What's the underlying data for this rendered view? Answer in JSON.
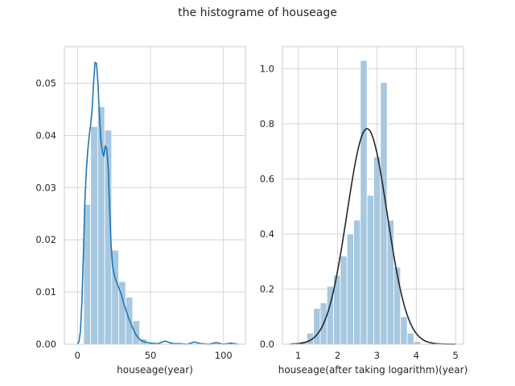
{
  "figure": {
    "suptitle": "the histograme of houseage",
    "colors": {
      "hist_fill": "#a6c8e0",
      "kde_line": "#1f77b4",
      "normal_line": "#262626",
      "grid": "#cccccc",
      "spine": "#cccccc"
    }
  },
  "chart_data": [
    {
      "type": "histogram",
      "title": "",
      "xlabel": "houseage(year)",
      "ylabel": "",
      "xlim": [
        -9,
        115
      ],
      "ylim": [
        0,
        0.057
      ],
      "xticks": [
        0,
        50,
        100
      ],
      "xtick_labels": [
        "0",
        "50",
        "100"
      ],
      "yticks": [
        0.0,
        0.01,
        0.02,
        0.03,
        0.04,
        0.05
      ],
      "ytick_labels": [
        "0.00",
        "0.01",
        "0.02",
        "0.03",
        "0.04",
        "0.05"
      ],
      "grid": true,
      "bins": [
        {
          "x0": 4.2,
          "x1": 9.0,
          "value": 0.0268
        },
        {
          "x0": 9.0,
          "x1": 13.8,
          "value": 0.0417
        },
        {
          "x0": 13.8,
          "x1": 18.6,
          "value": 0.0455
        },
        {
          "x0": 18.6,
          "x1": 23.4,
          "value": 0.041
        },
        {
          "x0": 23.4,
          "x1": 28.2,
          "value": 0.018
        },
        {
          "x0": 28.2,
          "x1": 33.0,
          "value": 0.012
        },
        {
          "x0": 33.0,
          "x1": 37.8,
          "value": 0.009
        },
        {
          "x0": 37.8,
          "x1": 42.6,
          "value": 0.0045
        },
        {
          "x0": 42.6,
          "x1": 47.4,
          "value": 0.001
        }
      ],
      "kde": {
        "x": [
          0,
          1,
          2,
          3,
          4,
          5,
          6,
          7,
          8,
          9,
          10,
          11,
          12,
          13,
          14,
          15,
          16,
          17,
          18,
          19,
          20,
          21,
          22,
          23,
          24,
          25,
          26,
          28,
          30,
          32,
          35,
          38,
          40,
          43,
          46,
          50,
          55,
          60,
          63,
          66,
          70,
          75,
          80,
          85,
          90,
          95,
          100,
          105,
          110
        ],
        "y": [
          0.0,
          0.0005,
          0.0025,
          0.008,
          0.017,
          0.027,
          0.033,
          0.037,
          0.04,
          0.042,
          0.045,
          0.05,
          0.054,
          0.0538,
          0.05,
          0.044,
          0.039,
          0.037,
          0.036,
          0.038,
          0.0375,
          0.034,
          0.026,
          0.019,
          0.015,
          0.0135,
          0.0125,
          0.011,
          0.0095,
          0.0075,
          0.005,
          0.003,
          0.0018,
          0.0008,
          0.0004,
          0.0002,
          0.0001,
          0.0006,
          0.0003,
          0.0001,
          0.0001,
          0.0,
          0.0004,
          0.0001,
          0.0,
          0.0003,
          0.0,
          0.0002,
          0.0
        ]
      }
    },
    {
      "type": "histogram",
      "title": "",
      "xlabel": "houseage(after taking logarithm)(year)",
      "ylabel": "",
      "xlim": [
        0.6,
        5.2
      ],
      "ylim": [
        0,
        1.08
      ],
      "xticks": [
        1,
        2,
        3,
        4,
        5
      ],
      "xtick_labels": [
        "1",
        "2",
        "3",
        "4",
        "5"
      ],
      "yticks": [
        0.0,
        0.2,
        0.4,
        0.6,
        0.8,
        1.0
      ],
      "ytick_labels": [
        "0.0",
        "0.2",
        "0.4",
        "0.6",
        "0.8",
        "1.0"
      ],
      "grid": true,
      "bins": [
        {
          "x0": 1.05,
          "x1": 1.22,
          "value": 0.01
        },
        {
          "x0": 1.22,
          "x1": 1.39,
          "value": 0.04
        },
        {
          "x0": 1.39,
          "x1": 1.56,
          "value": 0.13
        },
        {
          "x0": 1.56,
          "x1": 1.73,
          "value": 0.15
        },
        {
          "x0": 1.73,
          "x1": 1.9,
          "value": 0.21
        },
        {
          "x0": 1.9,
          "x1": 2.07,
          "value": 0.25
        },
        {
          "x0": 2.07,
          "x1": 2.24,
          "value": 0.32
        },
        {
          "x0": 2.24,
          "x1": 2.41,
          "value": 0.4
        },
        {
          "x0": 2.41,
          "x1": 2.58,
          "value": 0.45
        },
        {
          "x0": 2.58,
          "x1": 2.75,
          "value": 1.03
        },
        {
          "x0": 2.75,
          "x1": 2.92,
          "value": 0.54
        },
        {
          "x0": 2.92,
          "x1": 3.09,
          "value": 0.68
        },
        {
          "x0": 3.09,
          "x1": 3.26,
          "value": 0.95
        },
        {
          "x0": 3.26,
          "x1": 3.43,
          "value": 0.45
        },
        {
          "x0": 3.43,
          "x1": 3.6,
          "value": 0.28
        },
        {
          "x0": 3.6,
          "x1": 3.77,
          "value": 0.1
        },
        {
          "x0": 3.77,
          "x1": 3.94,
          "value": 0.04
        },
        {
          "x0": 3.94,
          "x1": 4.11,
          "value": 0.01
        }
      ],
      "normal_fit": {
        "mean": 2.75,
        "std": 0.51,
        "x_range": [
          0.8,
          5.0
        ]
      }
    }
  ]
}
